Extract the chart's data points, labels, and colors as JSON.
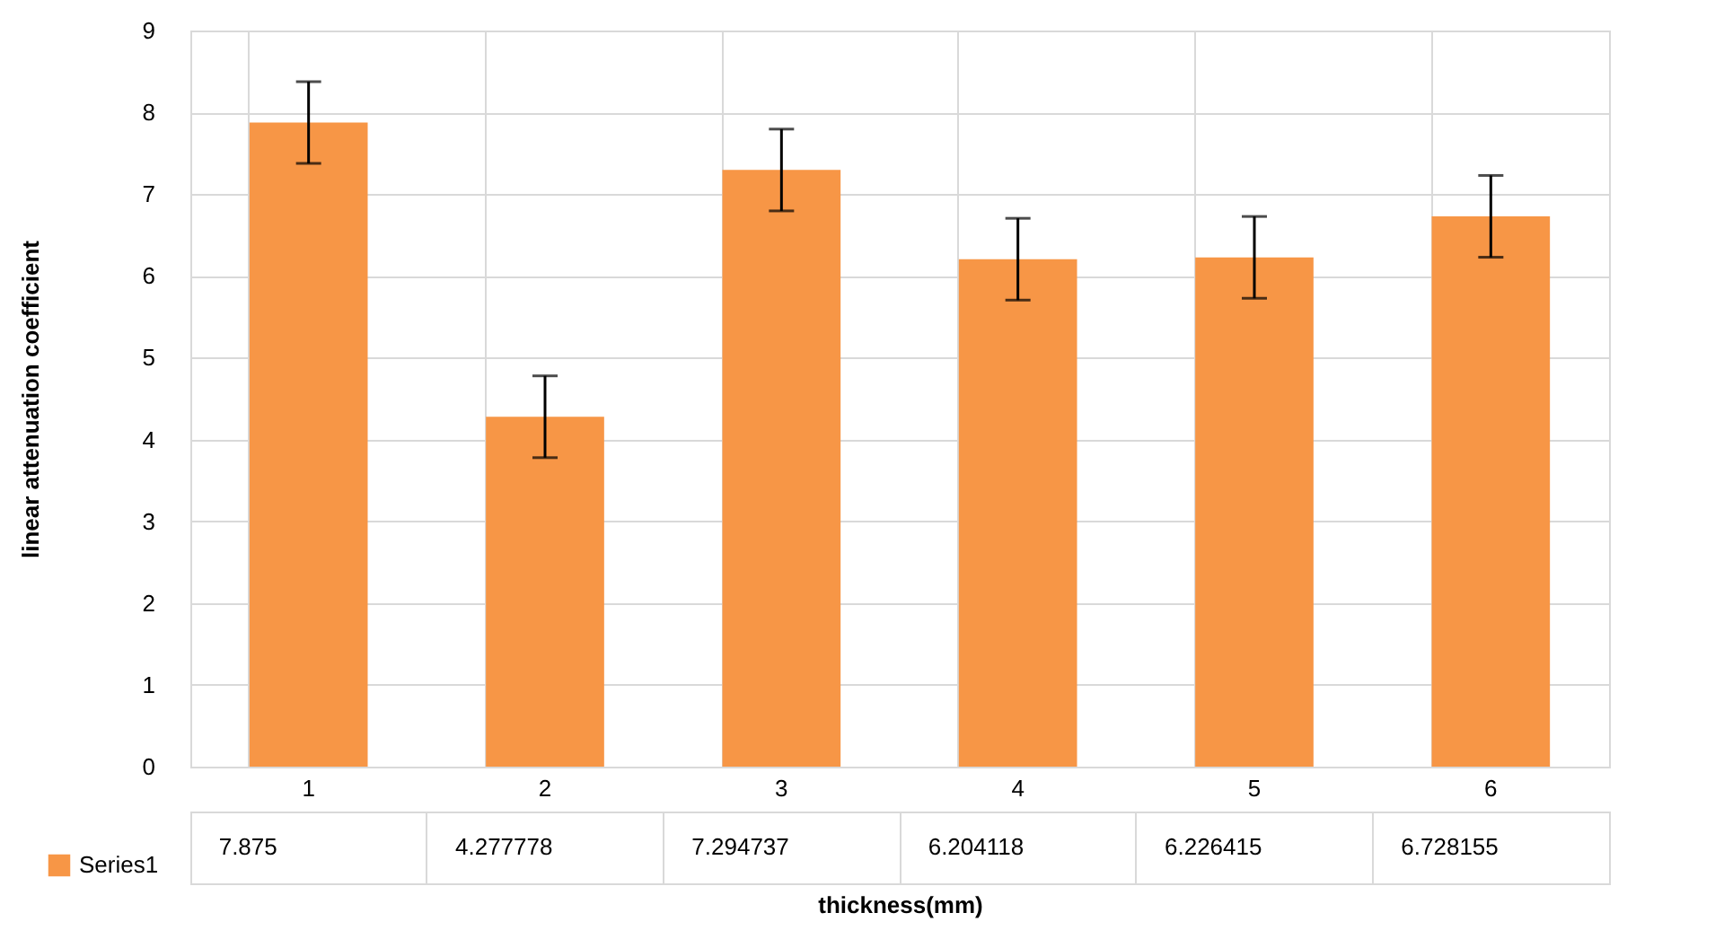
{
  "chart_data": {
    "type": "bar",
    "xlabel": "thickness(mm)",
    "ylabel": "linear attenuation coefficient",
    "categories": [
      "1",
      "2",
      "3",
      "4",
      "5",
      "6"
    ],
    "series": [
      {
        "name": "Series1",
        "color": "#f79646",
        "values": [
          7.875,
          4.277778,
          7.294737,
          6.204118,
          6.226415,
          6.728155
        ],
        "errors": [
          0.5,
          0.5,
          0.5,
          0.5,
          0.5,
          0.5
        ]
      }
    ],
    "ylim": [
      0,
      9
    ],
    "yticks": [
      0,
      1,
      2,
      3,
      4,
      5,
      6,
      7,
      8,
      9
    ],
    "grid": true,
    "legend": "bottom",
    "data_labels": true
  }
}
